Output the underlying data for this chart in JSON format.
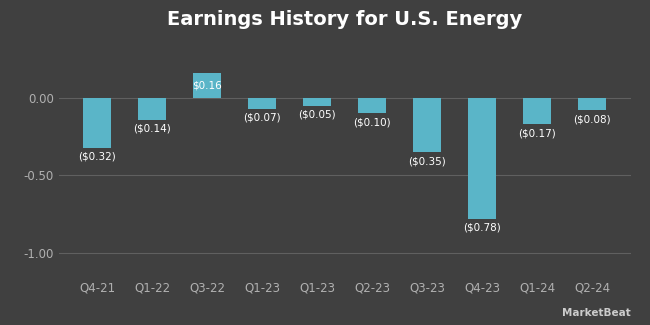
{
  "title": "Earnings History for U.S. Energy",
  "categories": [
    "Q4-21",
    "Q1-22",
    "Q3-22",
    "Q1-23",
    "Q1-23",
    "Q2-23",
    "Q3-23",
    "Q4-23",
    "Q1-24",
    "Q2-24"
  ],
  "values": [
    -0.32,
    -0.14,
    0.16,
    -0.07,
    -0.05,
    -0.1,
    -0.35,
    -0.78,
    -0.17,
    -0.08
  ],
  "labels": [
    "($0.32)",
    "($0.14)",
    "$0.16",
    "($0.07)",
    "($0.05)",
    "($0.10)",
    "($0.35)",
    "($0.78)",
    "($0.17)",
    "($0.08)"
  ],
  "bar_color": "#5ab5c8",
  "background_color": "#404040",
  "text_color": "#ffffff",
  "axis_label_color": "#b0b0b0",
  "grid_color": "#606060",
  "ylim": [
    -1.15,
    0.38
  ],
  "yticks": [
    0.0,
    -0.5,
    -1.0
  ],
  "title_fontsize": 14,
  "label_fontsize": 7.5,
  "tick_fontsize": 8.5,
  "watermark": "MarketBeat"
}
